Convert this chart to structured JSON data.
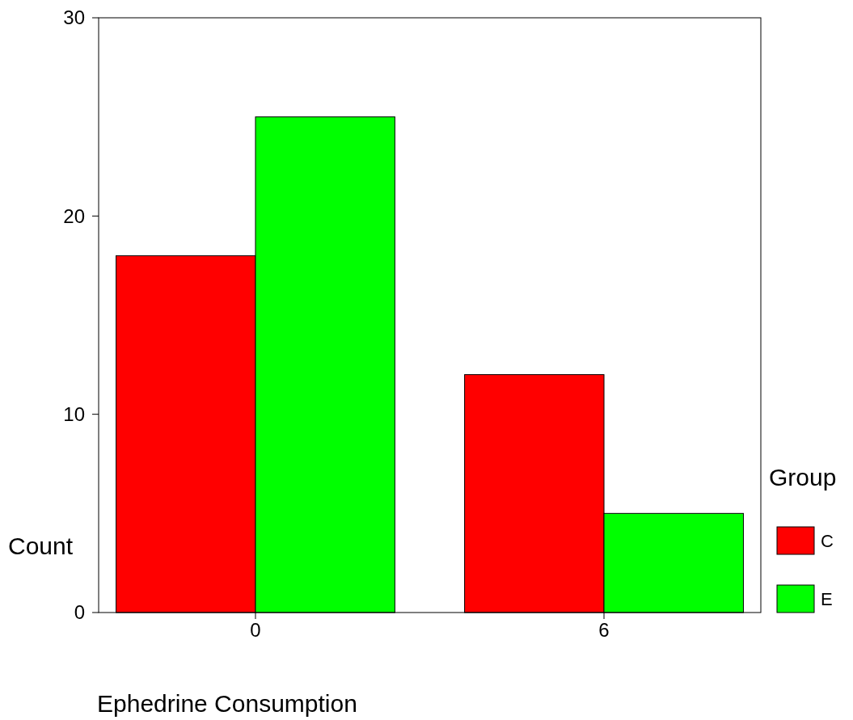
{
  "chart_data": {
    "type": "bar",
    "xlabel": "Ephedrine Consumption",
    "ylabel": "Count",
    "legend_title": "Group",
    "categories": [
      "0",
      "6"
    ],
    "series": [
      {
        "name": "C",
        "color": "#ff0000",
        "values": [
          18,
          12
        ]
      },
      {
        "name": "E",
        "color": "#00ff00",
        "values": [
          25,
          5
        ]
      }
    ],
    "ylim": [
      0,
      30
    ],
    "yticks": [
      0,
      10,
      20,
      30
    ],
    "legend": "right",
    "grid": false
  }
}
